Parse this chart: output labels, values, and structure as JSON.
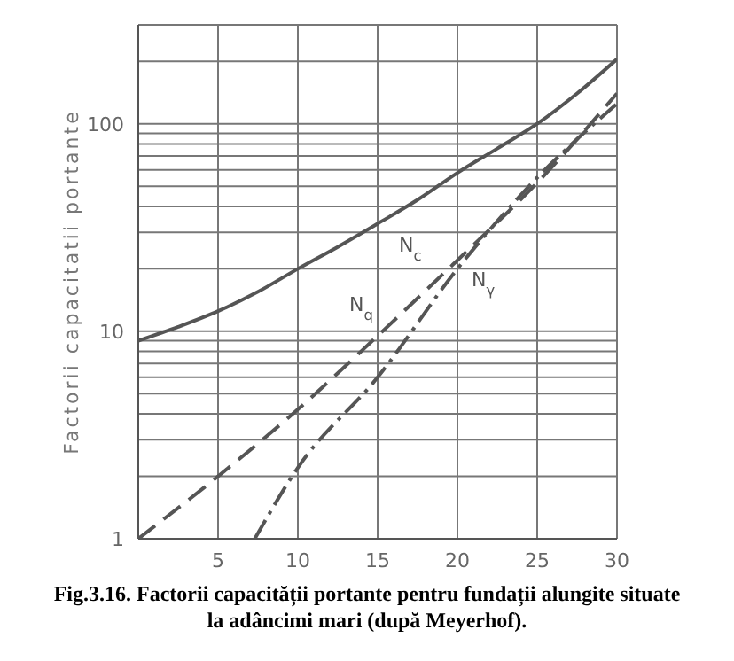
{
  "chart_data": {
    "type": "line",
    "ylabel": "Factorii capacitatii portante",
    "annotations": [
      "Fig.3.16. Factorii capacității portante pentru fundații alungite situate la adâncimi mari (după Meyerhof)."
    ],
    "log": "y",
    "grid": true,
    "marker": "none",
    "xlim": [
      0,
      30
    ],
    "xticks": [
      5,
      10,
      15,
      20,
      25,
      30
    ],
    "ylim": [
      1,
      300
    ],
    "yticks": [
      1,
      {
        "value": 2,
        "label": null
      },
      {
        "value": 3,
        "label": null
      },
      {
        "value": 4,
        "label": null
      },
      {
        "value": 5,
        "label": null
      },
      {
        "value": 6,
        "label": null
      },
      {
        "value": 7,
        "label": null
      },
      {
        "value": 8,
        "label": null
      },
      {
        "value": 9,
        "label": null
      },
      10,
      {
        "value": 20,
        "label": null
      },
      {
        "value": 30,
        "label": null
      },
      {
        "value": 40,
        "label": null
      },
      {
        "value": 50,
        "label": null
      },
      {
        "value": 60,
        "label": null
      },
      {
        "value": 70,
        "label": null
      },
      {
        "value": 80,
        "label": null
      },
      {
        "value": 90,
        "label": null
      },
      100,
      {
        "value": 200,
        "label": null
      }
    ],
    "series": [
      {
        "name": "N$_{c}$",
        "color": "#555555",
        "line_style": "solid",
        "x": [
          0,
          2.5,
          5,
          7.5,
          10,
          12.5,
          15,
          17.5,
          20,
          22.5,
          25,
          27.5,
          30
        ],
        "values": [
          9,
          10.5,
          12.5,
          15.5,
          20,
          25.5,
          33,
          43,
          58,
          76,
          100,
          140,
          205
        ]
      },
      {
        "name": "N$_{q}$",
        "color": "#555555",
        "line_style": "dashed",
        "x": [
          0,
          5,
          10,
          15,
          20,
          25,
          30
        ],
        "values": [
          1,
          2,
          4.2,
          9.5,
          22,
          52,
          140
        ]
      },
      {
        "name": "N$_{γ}$",
        "color": "#555555",
        "line_style": "dotted",
        "x": [
          7.3,
          10,
          15,
          20,
          25,
          30
        ],
        "values": [
          1,
          2.2,
          6,
          20,
          55,
          125
        ]
      }
    ]
  }
}
